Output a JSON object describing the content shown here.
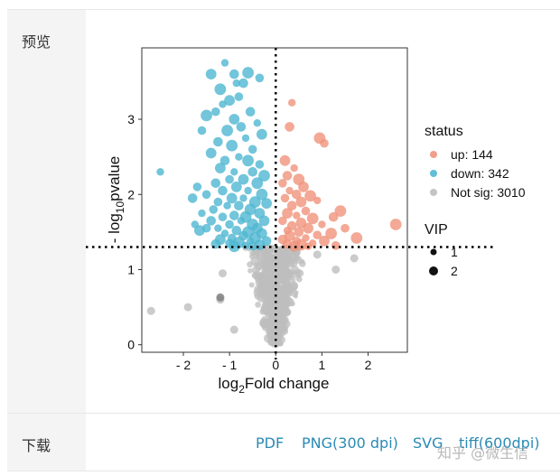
{
  "labels": {
    "preview": "预览",
    "download": "下载"
  },
  "downloads": [
    "PDF",
    "PNG(300 dpi)",
    "SVG",
    "tiff(600dpi)"
  ],
  "watermark": "知乎 @微生信",
  "colors": {
    "up": "#f0937c",
    "down": "#4fb7d1",
    "not_sig": "#bebebe",
    "link": "#2a8ab5"
  },
  "chart_data": {
    "type": "scatter",
    "title": "",
    "xlabel_main": "log",
    "xlabel_sub": "2",
    "xlabel_rest": "Fold change",
    "ylabel_main": "- log",
    "ylabel_sub": "10",
    "ylabel_rest": "pvalue",
    "xlim": [
      -2.9,
      2.85
    ],
    "ylim": [
      -0.1,
      3.95
    ],
    "x_ticks": [
      -2,
      -1,
      0,
      1,
      2
    ],
    "x_tick_labels": [
      "- 2",
      "- 1",
      "0",
      "1",
      "2"
    ],
    "y_ticks": [
      0,
      1,
      2,
      3
    ],
    "y_tick_labels": [
      "0",
      "1",
      "2",
      "3"
    ],
    "threshold_p": 1.3,
    "threshold_fc": 0,
    "legend_status_title": "status",
    "legend_status": [
      {
        "key": "up",
        "label": "up:  144"
      },
      {
        "key": "down",
        "label": "down:  342"
      },
      {
        "key": "not_sig",
        "label": "Not sig:  3010"
      }
    ],
    "legend_vip_title": "VIP",
    "legend_vip": [
      {
        "label": "1",
        "size": 1
      },
      {
        "label": "2",
        "size": 2
      }
    ],
    "series": [
      {
        "name": "down",
        "points": [
          [
            -1.1,
            3.75
          ],
          [
            -0.9,
            3.6
          ],
          [
            -0.6,
            3.62
          ],
          [
            -0.35,
            3.55
          ],
          [
            -1.4,
            3.6
          ],
          [
            -0.85,
            3.48
          ],
          [
            -0.7,
            3.48
          ],
          [
            -1.2,
            3.4
          ],
          [
            -0.8,
            3.3
          ],
          [
            -1.0,
            3.25
          ],
          [
            -1.15,
            3.2
          ],
          [
            -0.55,
            3.1
          ],
          [
            -1.5,
            3.05
          ],
          [
            -1.3,
            3.1
          ],
          [
            -0.9,
            3.0
          ],
          [
            -0.4,
            2.95
          ],
          [
            -0.75,
            2.9
          ],
          [
            -1.05,
            2.85
          ],
          [
            -1.6,
            2.85
          ],
          [
            -0.3,
            2.8
          ],
          [
            -0.65,
            2.75
          ],
          [
            -1.25,
            2.7
          ],
          [
            -0.95,
            2.65
          ],
          [
            -0.5,
            2.6
          ],
          [
            -1.4,
            2.55
          ],
          [
            -0.8,
            2.5
          ],
          [
            -1.1,
            2.45
          ],
          [
            -0.6,
            2.45
          ],
          [
            -0.35,
            2.4
          ],
          [
            -1.2,
            2.35
          ],
          [
            -0.9,
            2.3
          ],
          [
            -0.5,
            2.3
          ],
          [
            -0.25,
            2.25
          ],
          [
            -1.0,
            2.2
          ],
          [
            -0.7,
            2.2
          ],
          [
            -2.5,
            2.3
          ],
          [
            -1.3,
            2.15
          ],
          [
            -0.4,
            2.15
          ],
          [
            -1.7,
            2.1
          ],
          [
            -0.85,
            2.1
          ],
          [
            -0.6,
            2.05
          ],
          [
            -1.15,
            2.05
          ],
          [
            -0.3,
            2.0
          ],
          [
            -1.5,
            2.0
          ],
          [
            -0.95,
            1.95
          ],
          [
            -0.7,
            1.95
          ],
          [
            -1.8,
            1.95
          ],
          [
            -0.45,
            1.9
          ],
          [
            -1.25,
            1.9
          ],
          [
            -0.2,
            1.88
          ],
          [
            -1.05,
            1.85
          ],
          [
            -0.8,
            1.85
          ],
          [
            -0.55,
            1.8
          ],
          [
            -1.35,
            1.8
          ],
          [
            -0.35,
            1.75
          ],
          [
            -1.6,
            1.75
          ],
          [
            -0.9,
            1.72
          ],
          [
            -0.65,
            1.7
          ],
          [
            -1.15,
            1.7
          ],
          [
            -0.25,
            1.65
          ],
          [
            -0.75,
            1.65
          ],
          [
            -1.4,
            1.65
          ],
          [
            -0.5,
            1.6
          ],
          [
            -1.0,
            1.6
          ],
          [
            -0.4,
            1.55
          ],
          [
            -1.25,
            1.55
          ],
          [
            -0.85,
            1.52
          ],
          [
            -0.6,
            1.5
          ],
          [
            -1.5,
            1.55
          ],
          [
            -0.3,
            1.48
          ],
          [
            -1.1,
            1.48
          ],
          [
            -0.7,
            1.45
          ],
          [
            -0.45,
            1.42
          ],
          [
            -0.95,
            1.42
          ],
          [
            -1.2,
            1.4
          ],
          [
            -0.55,
            1.38
          ],
          [
            -0.2,
            1.38
          ],
          [
            -0.8,
            1.36
          ],
          [
            -1.0,
            1.35
          ],
          [
            -0.35,
            1.33
          ],
          [
            -0.65,
            1.32
          ],
          [
            -1.3,
            1.34
          ],
          [
            -0.9,
            1.31
          ],
          [
            -0.5,
            1.31
          ],
          [
            -1.65,
            1.52
          ],
          [
            -1.75,
            1.6
          ]
        ]
      },
      {
        "name": "up",
        "points": [
          [
            0.35,
            3.22
          ],
          [
            0.3,
            2.9
          ],
          [
            0.95,
            2.75
          ],
          [
            1.05,
            2.68
          ],
          [
            0.2,
            2.45
          ],
          [
            0.4,
            2.35
          ],
          [
            0.25,
            2.25
          ],
          [
            0.5,
            2.2
          ],
          [
            0.15,
            2.15
          ],
          [
            0.6,
            2.1
          ],
          [
            0.3,
            2.05
          ],
          [
            0.45,
            2.0
          ],
          [
            0.75,
            1.98
          ],
          [
            0.2,
            1.95
          ],
          [
            0.55,
            1.9
          ],
          [
            0.9,
            1.92
          ],
          [
            0.35,
            1.85
          ],
          [
            1.4,
            1.78
          ],
          [
            0.65,
            1.78
          ],
          [
            0.25,
            1.75
          ],
          [
            0.45,
            1.72
          ],
          [
            1.25,
            1.7
          ],
          [
            0.8,
            1.68
          ],
          [
            0.15,
            1.65
          ],
          [
            0.55,
            1.62
          ],
          [
            1.0,
            1.6
          ],
          [
            0.35,
            1.58
          ],
          [
            2.6,
            1.6
          ],
          [
            1.5,
            1.55
          ],
          [
            0.7,
            1.55
          ],
          [
            0.25,
            1.52
          ],
          [
            0.5,
            1.5
          ],
          [
            1.2,
            1.48
          ],
          [
            0.9,
            1.46
          ],
          [
            0.3,
            1.45
          ],
          [
            0.65,
            1.42
          ],
          [
            0.15,
            1.4
          ],
          [
            1.75,
            1.42
          ],
          [
            0.45,
            1.38
          ],
          [
            1.05,
            1.38
          ],
          [
            0.8,
            1.35
          ],
          [
            0.25,
            1.34
          ],
          [
            0.55,
            1.33
          ],
          [
            1.3,
            1.32
          ],
          [
            0.4,
            1.31
          ],
          [
            0.7,
            1.31
          ]
        ]
      }
    ]
  }
}
